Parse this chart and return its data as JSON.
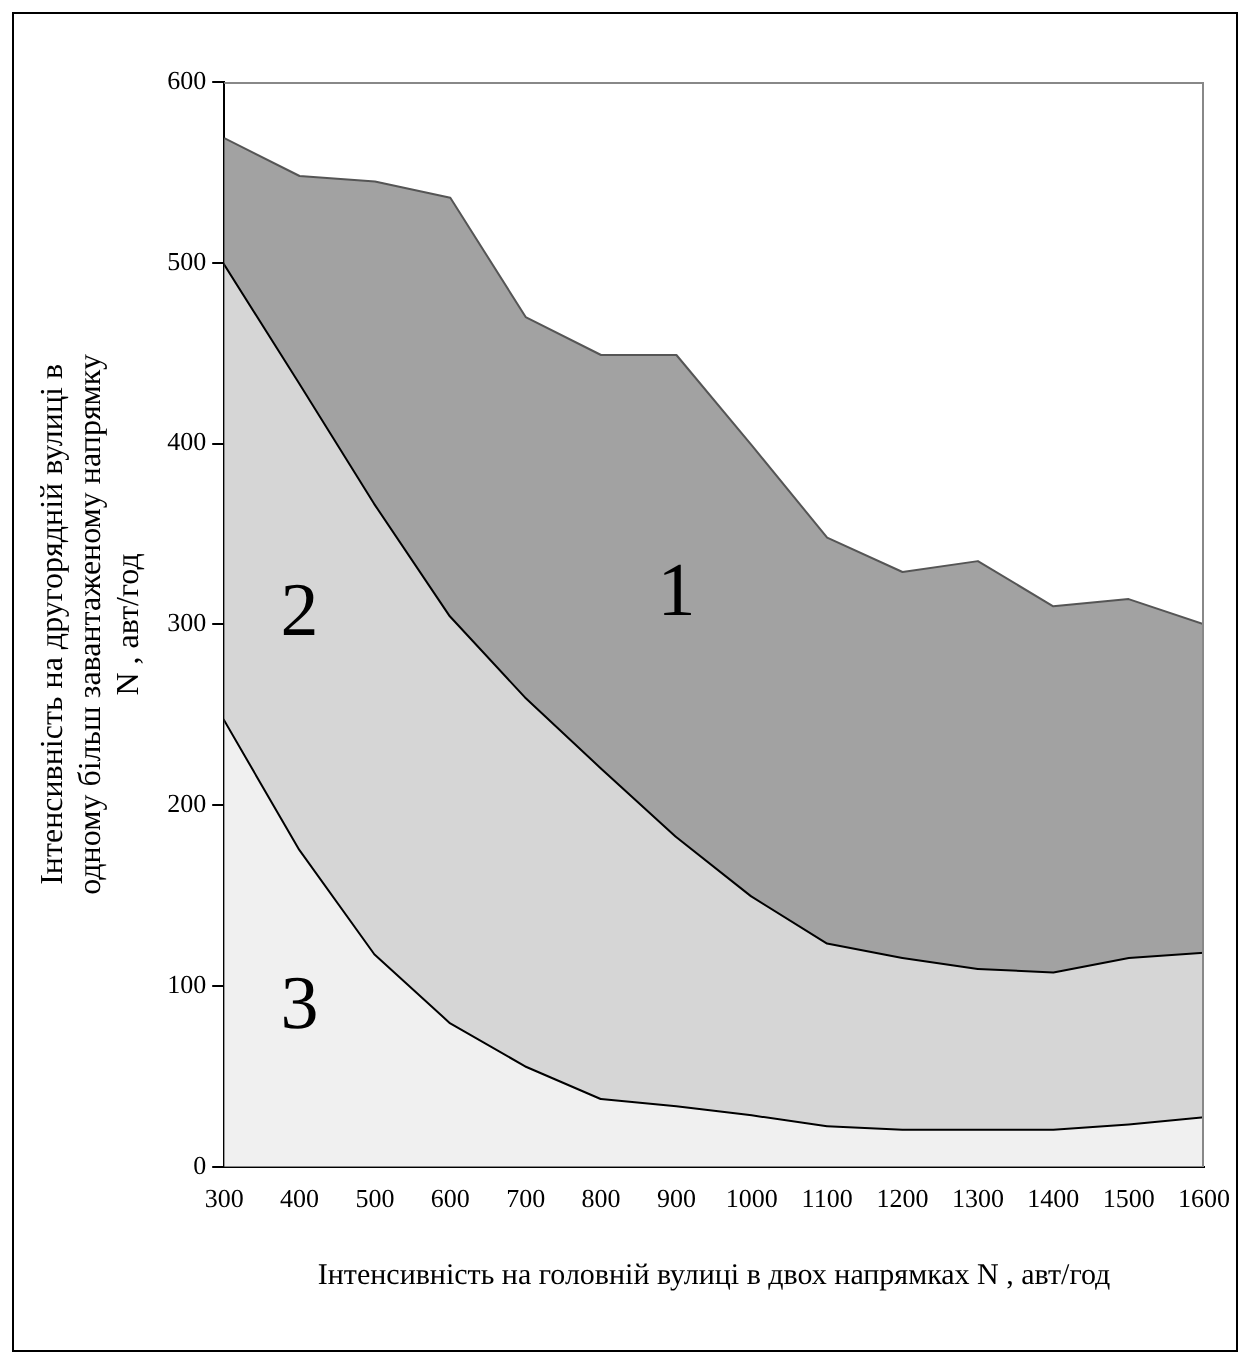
{
  "chart_data": {
    "type": "area",
    "xlabel": "Інтенсивність на головній вулиці в двох напрямках N , авт/год",
    "ylabel": "Інтенсивність на другорядній вулиці в\nодному більш завантаженому напрямку\nN , авт/год",
    "x": [
      300,
      400,
      500,
      600,
      700,
      800,
      900,
      1000,
      1100,
      1200,
      1300,
      1400,
      1500,
      1600
    ],
    "series": [
      {
        "name": "3",
        "color": "#f0f0f0",
        "values": [
          248,
          176,
          118,
          80,
          56,
          38,
          34,
          29,
          23,
          21,
          21,
          21,
          24,
          28
        ]
      },
      {
        "name": "2",
        "color": "#d6d6d6",
        "values": [
          500,
          434,
          367,
          305,
          260,
          221,
          183,
          150,
          124,
          116,
          110,
          108,
          116,
          119
        ]
      },
      {
        "name": "1",
        "color": "#a2a2a2",
        "values": [
          569,
          548,
          545,
          536,
          470,
          449,
          449,
          399,
          348,
          329,
          335,
          310,
          314,
          300
        ]
      }
    ],
    "xlim": [
      300,
      1600
    ],
    "xticks": [
      300,
      400,
      500,
      600,
      700,
      800,
      900,
      1000,
      1100,
      1200,
      1300,
      1400,
      1500,
      1600
    ],
    "ylim": [
      0,
      600
    ],
    "yticks": [
      0,
      100,
      200,
      300,
      400,
      500,
      600
    ],
    "grid": false,
    "legend": false
  }
}
